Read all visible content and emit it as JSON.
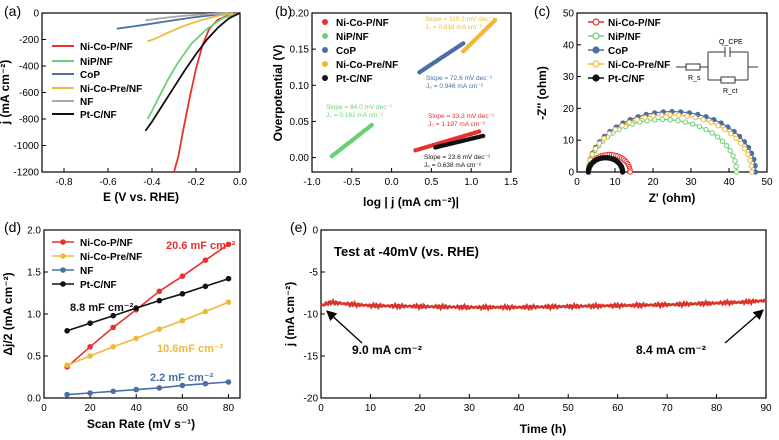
{
  "chart_data": [
    {
      "panel": "(a)",
      "type": "line",
      "title": "",
      "xlabel": "E (V vs. RHE)",
      "ylabel": "j (mA cm⁻²)",
      "xlim": [
        -0.9,
        0.0
      ],
      "ylim": [
        -1200,
        0
      ],
      "xticks": [
        "-0.8",
        "-0.6",
        "-0.4",
        "-0.2",
        "0.0"
      ],
      "yticks": [
        "0",
        "-200",
        "-400",
        "-600",
        "-800",
        "-1000",
        "-1200"
      ],
      "legend": [
        "Ni-Co-P/NF",
        "NiP/NF",
        "CoP",
        "Ni-Co-Pre/NF",
        "NF",
        "Pt-C/NF"
      ],
      "series": [
        {
          "name": "Ni-Co-P/NF",
          "color": "#e8312f",
          "x": [
            0.0,
            -0.05,
            -0.1,
            -0.14,
            -0.17,
            -0.2,
            -0.23,
            -0.26,
            -0.28,
            -0.3
          ],
          "y": [
            0,
            -15,
            -50,
            -120,
            -240,
            -420,
            -650,
            -900,
            -1080,
            -1200
          ]
        },
        {
          "name": "NiP/NF",
          "color": "#6dcf74",
          "x": [
            -0.02,
            -0.08,
            -0.15,
            -0.22,
            -0.28,
            -0.33,
            -0.37,
            -0.4,
            -0.42
          ],
          "y": [
            -5,
            -40,
            -120,
            -230,
            -370,
            -510,
            -640,
            -740,
            -800
          ]
        },
        {
          "name": "CoP",
          "color": "#4a6fa5",
          "x": [
            -0.03,
            -0.12,
            -0.22,
            -0.32,
            -0.42,
            -0.5,
            -0.56
          ],
          "y": [
            -3,
            -15,
            -35,
            -60,
            -85,
            -105,
            -118
          ]
        },
        {
          "name": "Ni-Co-Pre/NF",
          "color": "#f0b93a",
          "x": [
            -0.03,
            -0.1,
            -0.18,
            -0.26,
            -0.33,
            -0.38,
            -0.42
          ],
          "y": [
            -3,
            -20,
            -55,
            -100,
            -150,
            -190,
            -215
          ]
        },
        {
          "name": "NF",
          "color": "#aaaaaa",
          "x": [
            -0.05,
            -0.15,
            -0.25,
            -0.35,
            -0.43
          ],
          "y": [
            -2,
            -8,
            -20,
            -38,
            -55
          ]
        },
        {
          "name": "Pt-C/NF",
          "color": "#111111",
          "x": [
            0.0,
            -0.05,
            -0.1,
            -0.15,
            -0.2,
            -0.25,
            -0.3,
            -0.35,
            -0.4,
            -0.43
          ],
          "y": [
            0,
            -40,
            -110,
            -200,
            -310,
            -430,
            -560,
            -690,
            -820,
            -890
          ]
        }
      ]
    },
    {
      "panel": "(b)",
      "type": "scatter",
      "title": "",
      "xlabel": "log | j (mA cm⁻²)|",
      "ylabel": "Overpotential (V)",
      "xlim": [
        -1.0,
        1.5
      ],
      "ylim": [
        -0.02,
        0.2
      ],
      "xticks": [
        "-1.0",
        "-0.5",
        "0.0",
        "0.5",
        "1.0",
        "1.5"
      ],
      "yticks": [
        "0.00",
        "0.05",
        "0.10",
        "0.15",
        "0.20"
      ],
      "legend": [
        "Ni-Co-P/NF",
        "NiP/NF",
        "CoP",
        "Ni-Co-Pre/NF",
        "Pt-C/NF"
      ],
      "series": [
        {
          "name": "Ni-Co-P/NF",
          "color": "#e8312f",
          "x": [
            0.3,
            1.1
          ],
          "y": [
            0.01,
            0.036
          ]
        },
        {
          "name": "NiP/NF",
          "color": "#6dcf74",
          "x": [
            -0.75,
            -0.25
          ],
          "y": [
            0.002,
            0.045
          ]
        },
        {
          "name": "CoP",
          "color": "#4a6fa5",
          "x": [
            0.35,
            0.9
          ],
          "y": [
            0.118,
            0.158
          ]
        },
        {
          "name": "Ni-Co-Pre/NF",
          "color": "#f0b93a",
          "x": [
            0.9,
            1.3
          ],
          "y": [
            0.147,
            0.19
          ]
        },
        {
          "name": "Pt-C/NF",
          "color": "#111111",
          "x": [
            0.55,
            1.15
          ],
          "y": [
            0.014,
            0.03
          ]
        }
      ],
      "annotations": [
        {
          "slope": "Slope = 110.3 mV dec⁻¹",
          "j0": "J₀ = 0.818 mA cm⁻²",
          "color": "#f0b93a"
        },
        {
          "slope": "Slope = 72.6 mV dec⁻¹",
          "j0": "J₀ = 0.946 mA cm⁻²",
          "color": "#4a6fa5"
        },
        {
          "slope": "Slope = 84.0 mV dec⁻¹",
          "j0": "J₀ = 0.181 mA cm⁻²",
          "color": "#6dcf74"
        },
        {
          "slope": "Slope = 33.3 mV dec⁻¹",
          "j0": "J₀ = 1.197 mA cm⁻²",
          "color": "#e8312f"
        },
        {
          "slope": "Slope = 23.6 mV dec⁻¹",
          "j0": "J₀ = 0.638 mA cm⁻²",
          "color": "#111111"
        }
      ]
    },
    {
      "panel": "(c)",
      "type": "line",
      "title": "",
      "xlabel": "Z' (ohm)",
      "ylabel": "-Z'' (ohm)",
      "xlim": [
        0,
        50
      ],
      "ylim": [
        0,
        50
      ],
      "xticks": [
        "0",
        "10",
        "20",
        "30",
        "40",
        "50"
      ],
      "yticks": [
        "0",
        "10",
        "20",
        "30",
        "40",
        "50"
      ],
      "legend": [
        "Ni-Co-P/NF",
        "NiP/NF",
        "CoP",
        "Ni-Co-Pre/NF",
        "Pt-C/NF"
      ],
      "circuit_labels": [
        "Q_CPE",
        "R_s",
        "R_ct"
      ],
      "series": [
        {
          "name": "Ni-Co-P/NF",
          "color": "#e8312f",
          "r0": 3,
          "r1": 14,
          "peak": 5.5
        },
        {
          "name": "NiP/NF",
          "color": "#6dcf74",
          "r0": 3,
          "r1": 42,
          "peak": 16.5
        },
        {
          "name": "CoP",
          "color": "#4a6fa5",
          "r0": 3,
          "r1": 47,
          "peak": 19
        },
        {
          "name": "Ni-Co-Pre/NF",
          "color": "#f0b93a",
          "r0": 3,
          "r1": 46,
          "peak": 18
        },
        {
          "name": "Pt-C/NF",
          "color": "#111111",
          "r0": 3,
          "r1": 12,
          "peak": 4.5
        }
      ]
    },
    {
      "panel": "(d)",
      "type": "scatter",
      "title": "",
      "xlabel": "Scan Rate (mV s⁻¹)",
      "ylabel": "Δj/2 (mA cm⁻²)",
      "xlim": [
        0,
        85
      ],
      "ylim": [
        0,
        2.0
      ],
      "xticks": [
        "0",
        "20",
        "40",
        "60",
        "80"
      ],
      "yticks": [
        "0.0",
        "0.5",
        "1.0",
        "1.5",
        "2.0"
      ],
      "legend": [
        "Ni-Co-P/NF",
        "Ni-Co-Pre/NF",
        "NF",
        "Pt-C/NF"
      ],
      "labels": {
        "nicop": "20.6 mF cm⁻²",
        "ptc": "8.8 mF cm⁻²",
        "pre": "10.6mF cm⁻²",
        "nf": "2.2 mF cm⁻²"
      },
      "series": [
        {
          "name": "Ni-Co-P/NF",
          "color": "#e8312f",
          "x": [
            10,
            20,
            30,
            40,
            50,
            60,
            70,
            80
          ],
          "y": [
            0.37,
            0.61,
            0.84,
            1.05,
            1.27,
            1.45,
            1.64,
            1.83
          ]
        },
        {
          "name": "Ni-Co-Pre/NF",
          "color": "#f0b93a",
          "x": [
            10,
            20,
            30,
            40,
            50,
            60,
            70,
            80
          ],
          "y": [
            0.39,
            0.5,
            0.61,
            0.71,
            0.82,
            0.92,
            1.03,
            1.14
          ]
        },
        {
          "name": "NF",
          "color": "#4a6fa5",
          "x": [
            10,
            20,
            30,
            40,
            50,
            60,
            70,
            80
          ],
          "y": [
            0.04,
            0.06,
            0.08,
            0.1,
            0.12,
            0.15,
            0.17,
            0.19
          ]
        },
        {
          "name": "Pt-C/NF",
          "color": "#111111",
          "x": [
            10,
            20,
            30,
            40,
            50,
            60,
            70,
            80
          ],
          "y": [
            0.8,
            0.89,
            0.98,
            1.07,
            1.16,
            1.24,
            1.33,
            1.42
          ]
        }
      ]
    },
    {
      "panel": "(e)",
      "type": "line",
      "title": "Test at -40mV (vs. RHE)",
      "xlabel": "Time (h)",
      "ylabel": "j (mA cm⁻²)",
      "xlim": [
        0,
        90
      ],
      "ylim": [
        -20,
        0
      ],
      "xticks": [
        "0",
        "10",
        "20",
        "30",
        "40",
        "50",
        "60",
        "70",
        "80",
        "90"
      ],
      "yticks": [
        "0",
        "-5",
        "-10",
        "-15",
        "-20"
      ],
      "annotations": [
        "9.0 mA cm⁻²",
        "8.4 mA cm⁻²"
      ],
      "series": [
        {
          "name": "Ni-Co-P/NF",
          "color": "#d9342b",
          "x": [
            0,
            2,
            5,
            10,
            20,
            30,
            40,
            50,
            60,
            70,
            80,
            85,
            90
          ],
          "y": [
            -9.0,
            -8.6,
            -8.8,
            -9.0,
            -9.1,
            -9.2,
            -9.2,
            -9.1,
            -9.0,
            -8.9,
            -8.7,
            -8.6,
            -8.4
          ]
        }
      ]
    }
  ]
}
